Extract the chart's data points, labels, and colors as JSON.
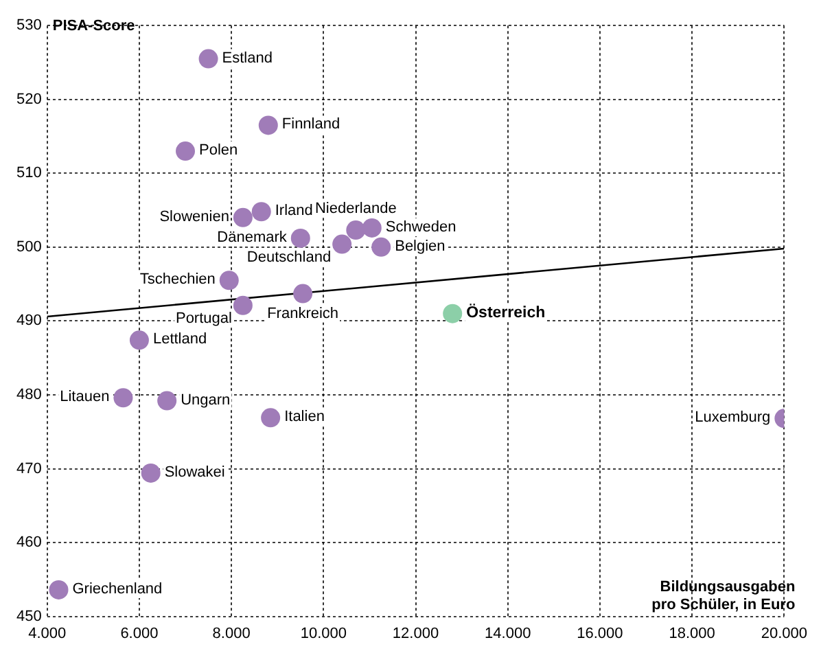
{
  "chart_data": {
    "type": "scatter",
    "ylabel": "PISA-Score",
    "xlabel": "Bildungsausgaben pro Schüler, in Euro",
    "series": [
      {
        "color": "#a07cb8",
        "x": [
          7500,
          8800,
          7000,
          8650,
          8250,
          9500,
          10700,
          11050,
          10400,
          11250,
          7950,
          9550,
          8250,
          6000,
          5650,
          6600,
          8850,
          20000,
          6250,
          4250
        ],
        "values": [
          525.5,
          516.5,
          513,
          504.8,
          504,
          501.2,
          502.3,
          502.6,
          500.4,
          500,
          495.5,
          493.7,
          492.1,
          487.4,
          479.6,
          479.2,
          476.9,
          476.8,
          469.4,
          453.6
        ]
      },
      {
        "color": "#8ccfa8",
        "x": [
          12800
        ],
        "values": [
          491
        ]
      },
      {
        "type": "line",
        "color": "#000000",
        "x": [
          4000,
          20000
        ],
        "values": [
          490.6,
          499.8
        ],
        "marker": "none"
      }
    ],
    "annotations": [
      {
        "text": "Estland",
        "x": 7500,
        "y": 525.5
      },
      {
        "text": "Finnland",
        "x": 8800,
        "y": 516.5
      },
      {
        "text": "Polen",
        "x": 7000,
        "y": 513
      },
      {
        "text": "Irland",
        "x": 8650,
        "y": 504.8
      },
      {
        "text": "Slowenien",
        "x": 8250,
        "y": 504
      },
      {
        "text": "Dänemark",
        "x": 9500,
        "y": 501.2
      },
      {
        "text": "Niederlande",
        "x": 10700,
        "y": 502.3
      },
      {
        "text": "Schweden",
        "x": 11050,
        "y": 502.6
      },
      {
        "text": "Deutschland",
        "x": 10400,
        "y": 500.4
      },
      {
        "text": "Belgien",
        "x": 11250,
        "y": 500
      },
      {
        "text": "Tschechien",
        "x": 7950,
        "y": 495.5
      },
      {
        "text": "Frankreich",
        "x": 9550,
        "y": 493.7
      },
      {
        "text": "Portugal",
        "x": 8250,
        "y": 492.1
      },
      {
        "text": "Lettland",
        "x": 6000,
        "y": 487.4
      },
      {
        "text": "Litauen",
        "x": 5650,
        "y": 479.6
      },
      {
        "text": "Ungarn",
        "x": 6600,
        "y": 479.2
      },
      {
        "text": "Italien",
        "x": 8850,
        "y": 476.9
      },
      {
        "text": "Luxemburg",
        "x": 20000,
        "y": 476.8
      },
      {
        "text": "Slowakei",
        "x": 6250,
        "y": 469.4
      },
      {
        "text": "Griechenland",
        "x": 4250,
        "y": 453.6
      },
      {
        "text": "Österreich",
        "x": 12800,
        "y": 491
      }
    ],
    "xlim": [
      4000,
      20000
    ],
    "xticks": [
      {
        "value": 4000,
        "label": "4.000"
      },
      {
        "value": 6000,
        "label": "6.000"
      },
      {
        "value": 8000,
        "label": "8.000"
      },
      {
        "value": 10000,
        "label": "10.000"
      },
      {
        "value": 12000,
        "label": "12.000"
      },
      {
        "value": 14000,
        "label": "14.000"
      },
      {
        "value": 16000,
        "label": "16.000"
      },
      {
        "value": 18000,
        "label": "18.000"
      },
      {
        "value": 20000,
        "label": "20.000"
      }
    ],
    "ylim": [
      450,
      530
    ],
    "yticks": [
      450,
      460,
      470,
      480,
      490,
      500,
      510,
      520,
      530
    ],
    "grid": true,
    "marker": "circle",
    "legend": false
  }
}
